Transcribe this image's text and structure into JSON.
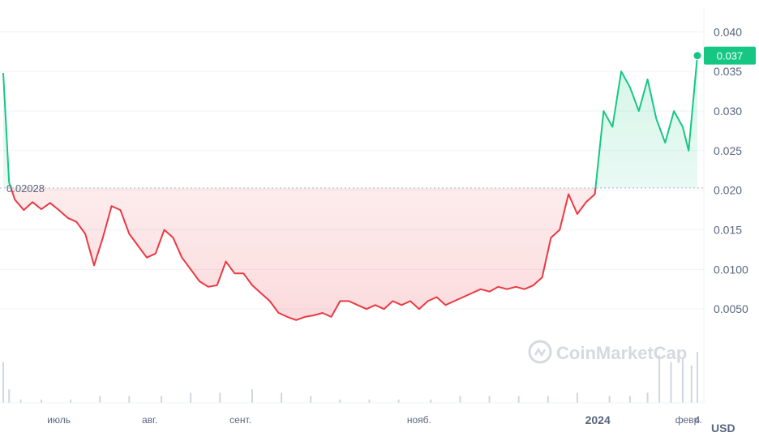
{
  "chart_data": {
    "type": "area",
    "y_axis": {
      "range": [
        0,
        0.043
      ],
      "ticks": [
        {
          "value": 0.04,
          "label": "0.040"
        },
        {
          "value": 0.035,
          "label": "0.035"
        },
        {
          "value": 0.03,
          "label": "0.030"
        },
        {
          "value": 0.025,
          "label": "0.025"
        },
        {
          "value": 0.02,
          "label": "0.020"
        },
        {
          "value": 0.015,
          "label": "0.015"
        },
        {
          "value": 0.01,
          "label": "0.0100"
        },
        {
          "value": 0.005,
          "label": "0.0050"
        }
      ],
      "unit": "USD"
    },
    "x_axis": {
      "range": [
        "2023-06-12",
        "2024-02-04"
      ],
      "ticks": [
        {
          "date": "2023-07-01",
          "label": "июль",
          "bold": false
        },
        {
          "date": "2023-08-01",
          "label": "авг.",
          "bold": false
        },
        {
          "date": "2023-09-01",
          "label": "сент.",
          "bold": false
        },
        {
          "date": "2023-11-01",
          "label": "нояб.",
          "bold": false
        },
        {
          "date": "2024-01-01",
          "label": "2024",
          "bold": true
        },
        {
          "date": "2024-02-01",
          "label": "февр.",
          "bold": false
        },
        {
          "date": "2024-02-04",
          "label": "4",
          "bold": false
        }
      ]
    },
    "reference_price": {
      "value": 0.02028,
      "label": "0.02028"
    },
    "current_price": {
      "value": 0.037,
      "label": "0.037"
    },
    "series": [
      {
        "x": [
          "2023-06-12",
          "2023-06-14",
          "2023-06-16",
          "2023-06-19",
          "2023-06-22",
          "2023-06-25",
          "2023-06-28",
          "2023-07-01",
          "2023-07-04",
          "2023-07-07",
          "2023-07-10",
          "2023-07-13",
          "2023-07-16",
          "2023-07-19",
          "2023-07-22",
          "2023-07-25",
          "2023-07-28",
          "2023-07-31",
          "2023-08-03",
          "2023-08-06",
          "2023-08-09",
          "2023-08-12",
          "2023-08-15",
          "2023-08-18",
          "2023-08-21",
          "2023-08-24",
          "2023-08-27",
          "2023-08-30",
          "2023-09-02",
          "2023-09-05",
          "2023-09-08",
          "2023-09-11",
          "2023-09-14",
          "2023-09-17",
          "2023-09-20",
          "2023-09-23",
          "2023-09-26",
          "2023-09-29",
          "2023-10-02",
          "2023-10-05",
          "2023-10-08",
          "2023-10-11",
          "2023-10-14",
          "2023-10-17",
          "2023-10-20",
          "2023-10-23",
          "2023-10-26",
          "2023-10-29",
          "2023-11-01",
          "2023-11-04",
          "2023-11-07",
          "2023-11-10",
          "2023-11-13",
          "2023-11-16",
          "2023-11-19",
          "2023-11-22",
          "2023-11-25",
          "2023-11-28",
          "2023-12-01",
          "2023-12-04",
          "2023-12-07",
          "2023-12-10",
          "2023-12-13",
          "2023-12-16",
          "2023-12-19",
          "2023-12-22",
          "2023-12-25",
          "2023-12-28",
          "2023-12-31",
          "2024-01-03",
          "2024-01-06",
          "2024-01-09",
          "2024-01-12",
          "2024-01-15",
          "2024-01-18",
          "2024-01-21",
          "2024-01-24",
          "2024-01-27",
          "2024-01-30",
          "2024-02-01",
          "2024-02-02",
          "2024-02-03",
          "2024-02-04"
        ],
        "values": [
          0.0348,
          0.021,
          0.0188,
          0.0175,
          0.0185,
          0.0176,
          0.0184,
          0.0175,
          0.0165,
          0.016,
          0.0145,
          0.0105,
          0.014,
          0.018,
          0.0175,
          0.0145,
          0.013,
          0.0115,
          0.012,
          0.015,
          0.014,
          0.0115,
          0.01,
          0.0085,
          0.0078,
          0.008,
          0.011,
          0.0095,
          0.0095,
          0.008,
          0.007,
          0.006,
          0.0045,
          0.004,
          0.0036,
          0.004,
          0.0042,
          0.0045,
          0.004,
          0.006,
          0.006,
          0.0055,
          0.005,
          0.0055,
          0.005,
          0.006,
          0.0055,
          0.006,
          0.005,
          0.006,
          0.0065,
          0.0055,
          0.006,
          0.0065,
          0.007,
          0.0075,
          0.0072,
          0.0078,
          0.0075,
          0.0078,
          0.0075,
          0.008,
          0.009,
          0.014,
          0.015,
          0.0195,
          0.017,
          0.0185,
          0.0195,
          0.03,
          0.028,
          0.035,
          0.033,
          0.03,
          0.034,
          0.029,
          0.026,
          0.03,
          0.028,
          0.025,
          0.029,
          0.033,
          0.037
        ]
      }
    ],
    "volume": {
      "x": [
        "2023-06-12",
        "2023-06-14",
        "2023-06-18",
        "2023-06-25",
        "2023-07-05",
        "2023-07-15",
        "2023-07-25",
        "2023-08-05",
        "2023-08-15",
        "2023-08-25",
        "2023-09-05",
        "2023-09-15",
        "2023-09-25",
        "2023-10-05",
        "2023-10-15",
        "2023-10-25",
        "2023-11-05",
        "2023-11-15",
        "2023-11-25",
        "2023-12-05",
        "2023-12-15",
        "2023-12-25",
        "2024-01-05",
        "2024-01-12",
        "2024-01-18",
        "2024-01-22",
        "2024-01-26",
        "2024-01-30",
        "2024-02-02",
        "2024-02-04"
      ],
      "values": [
        12,
        4,
        1,
        1,
        1,
        2,
        2,
        2,
        3,
        3,
        4,
        3,
        2,
        1,
        1,
        1,
        1,
        2,
        2,
        2,
        2,
        3,
        2,
        2,
        3,
        14,
        12,
        13,
        11,
        15
      ]
    }
  },
  "watermark": {
    "text": "CoinMarketCap"
  },
  "colors": {
    "up": "#16c784",
    "down": "#ea3943",
    "grid": "#eff2f5",
    "axis_text": "#58667e",
    "volume": "#cfd6e4"
  }
}
